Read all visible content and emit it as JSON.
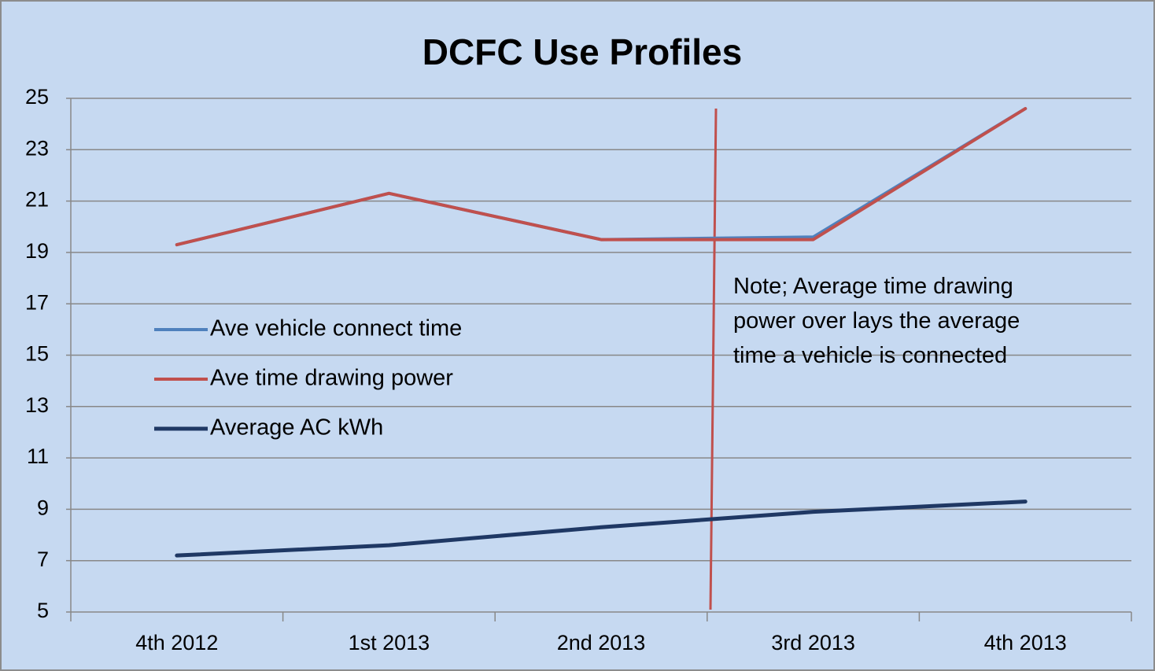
{
  "chart_data": {
    "type": "line",
    "title": "DCFC Use Profiles",
    "categories": [
      "4th 2012",
      "1st 2013",
      "2nd 2013",
      "3rd 2013",
      "4th 2013"
    ],
    "series": [
      {
        "name": "Ave vehicle connect time",
        "color": "#4f81bd",
        "values": [
          19.3,
          21.3,
          19.5,
          19.6,
          24.6
        ]
      },
      {
        "name": "Ave time drawing power",
        "color": "#c0504d",
        "values": [
          19.3,
          21.3,
          19.5,
          19.5,
          24.6
        ]
      },
      {
        "name": "Average AC kWh",
        "color": "#1f3864",
        "values": [
          7.2,
          7.6,
          8.3,
          8.9,
          9.3
        ]
      }
    ],
    "ylim": [
      5,
      25
    ],
    "yticks": [
      5,
      7,
      9,
      11,
      13,
      15,
      17,
      19,
      21,
      23,
      25
    ],
    "grid": true,
    "annotation": "Note; Average time drawing power over lays the average time a vehicle is connected"
  }
}
